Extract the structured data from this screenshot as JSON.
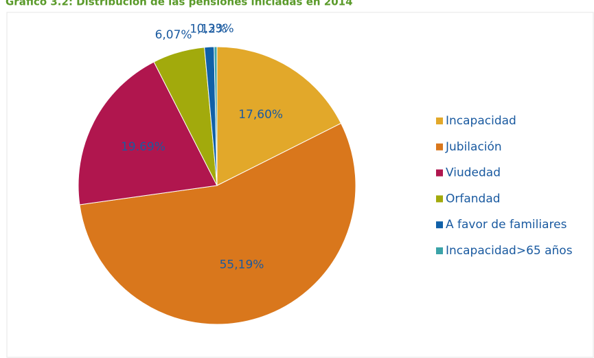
{
  "chart_data": {
    "type": "pie",
    "title": "Gráfico 3.2: Distribución de las pensiones iniciadas en 2014",
    "categories": [
      "Incapacidad",
      "Jubilación",
      "Viudedad",
      "Orfandad",
      "A favor de familiares",
      "Incapacidad>65 años"
    ],
    "values": [
      17.6,
      55.19,
      19.69,
      6.07,
      1.12,
      0.33
    ],
    "value_labels": [
      "17,60%",
      "55,19%",
      "19.69%",
      "6,07%",
      "1,12%",
      "0,33%"
    ],
    "colors": [
      "#e2a82a",
      "#d9771c",
      "#b0164e",
      "#a2aa0c",
      "#1060a8",
      "#3ba3a8"
    ],
    "legend": "right"
  }
}
